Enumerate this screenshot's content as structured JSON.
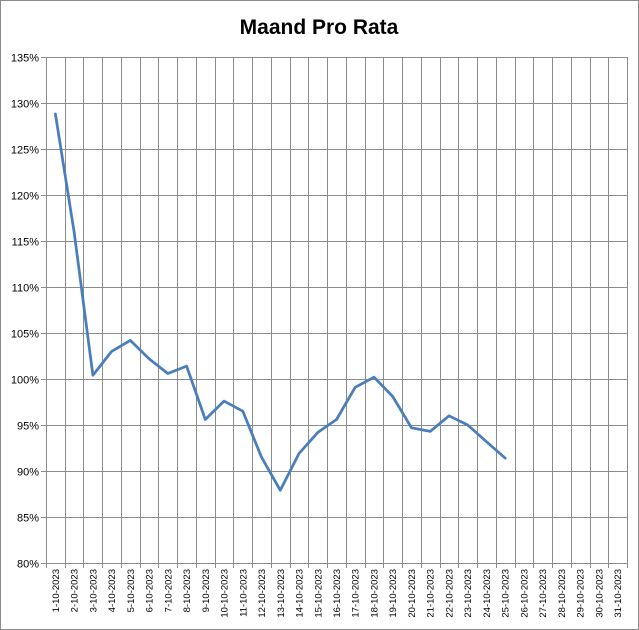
{
  "chart_data": {
    "type": "line",
    "title": "Maand Pro Rata",
    "xlabel": "",
    "ylabel": "",
    "ylim": [
      80,
      135
    ],
    "ytick_step": 5,
    "ytick_labels": [
      "80%",
      "85%",
      "90%",
      "95%",
      "100%",
      "105%",
      "110%",
      "115%",
      "120%",
      "125%",
      "130%",
      "135%"
    ],
    "grid": true,
    "legend": "none",
    "line_color": "#4a7ebb",
    "categories": [
      "1-10-2023",
      "2-10-2023",
      "3-10-2023",
      "4-10-2023",
      "5-10-2023",
      "6-10-2023",
      "7-10-2023",
      "8-10-2023",
      "9-10-2023",
      "10-10-2023",
      "11-10-2023",
      "12-10-2023",
      "13-10-2023",
      "14-10-2023",
      "15-10-2023",
      "16-10-2023",
      "17-10-2023",
      "18-10-2023",
      "19-10-2023",
      "20-10-2023",
      "21-10-2023",
      "22-10-2023",
      "23-10-2023",
      "24-10-2023",
      "25-10-2023",
      "26-10-2023",
      "27-10-2023",
      "28-10-2023",
      "29-10-2023",
      "30-10-2023",
      "31-10-2023"
    ],
    "series": [
      {
        "name": "Maand Pro Rata",
        "values": [
          128.8,
          116.0,
          100.4,
          103.0,
          104.2,
          102.2,
          100.6,
          101.4,
          95.6,
          97.6,
          96.5,
          91.5,
          87.9,
          91.9,
          94.2,
          95.6,
          99.1,
          100.2,
          98.1,
          94.7,
          94.3,
          96.0,
          95.0,
          93.2,
          91.4,
          null,
          null,
          null,
          null,
          null,
          null
        ]
      }
    ]
  }
}
